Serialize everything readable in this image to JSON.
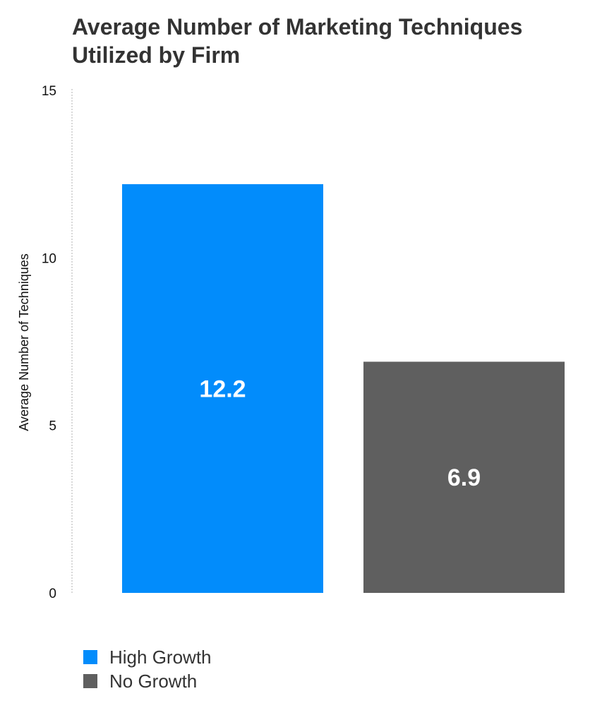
{
  "chart_data": {
    "type": "bar",
    "title": "Average Number of Marketing Techniques Utilized by Firm",
    "title_lines": [
      "Average Number of Marketing Techniques",
      "Utilized by Firm"
    ],
    "categories": [
      "High Growth",
      "No Growth"
    ],
    "values": [
      12.2,
      6.9
    ],
    "data_labels": [
      "12.2",
      "6.9"
    ],
    "colors": [
      "#028cfb",
      "#5f5f5f"
    ],
    "xlabel": "",
    "ylabel": "Average Number of Techniques",
    "ylim": [
      0,
      15
    ],
    "yticks": [
      0,
      5,
      10,
      15
    ],
    "grid": false,
    "legend_position": "bottom-left"
  }
}
